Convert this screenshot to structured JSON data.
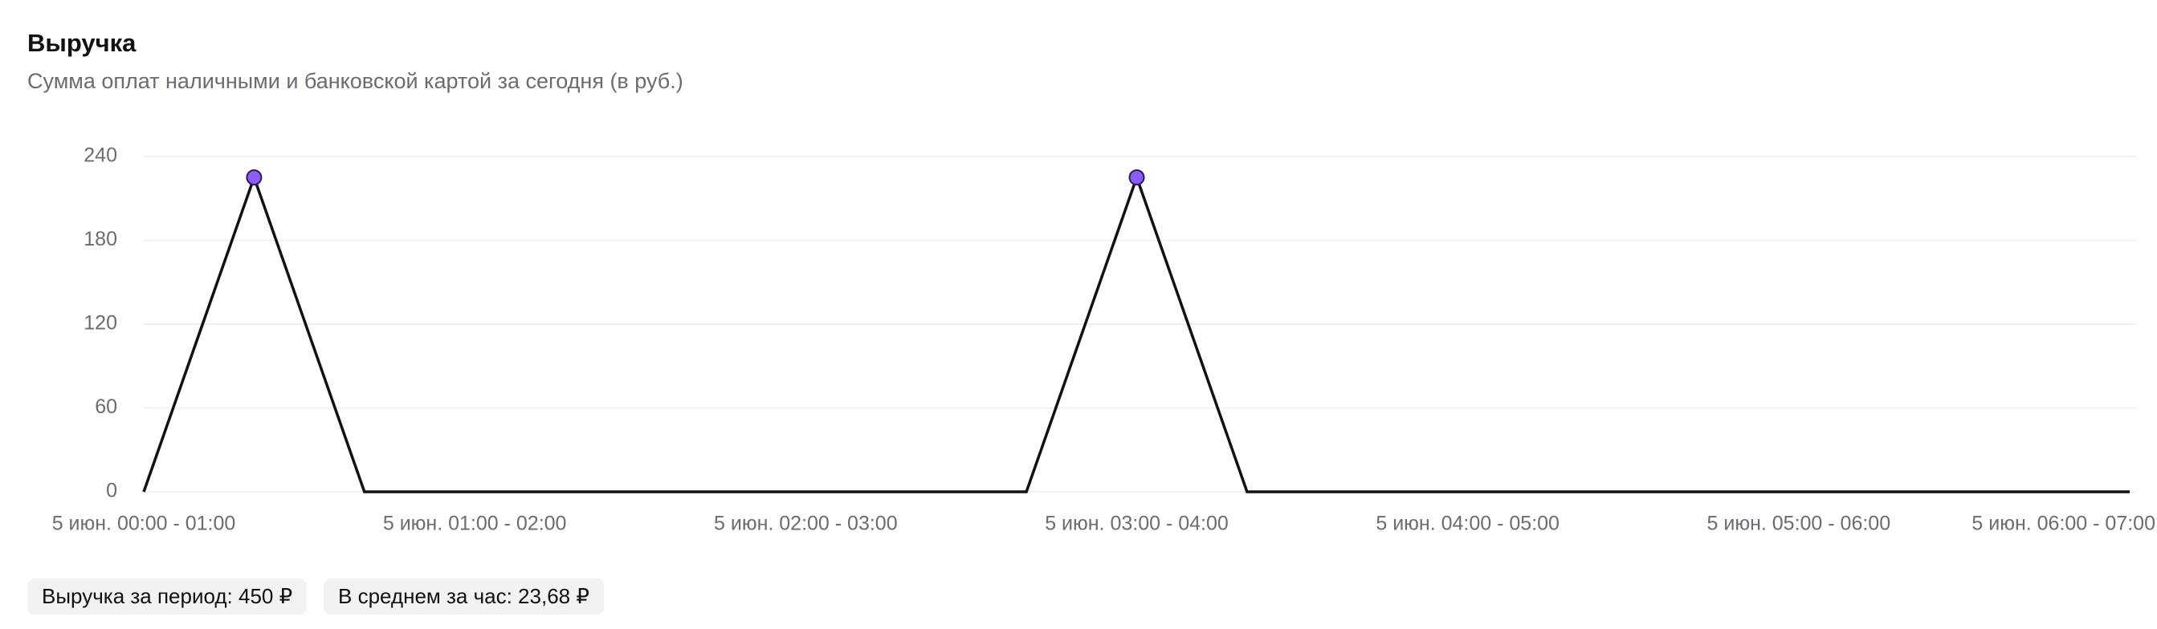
{
  "chart_data": {
    "type": "line",
    "title": "Выручка",
    "subtitle": "Сумма оплат наличными и банковской картой за сегодня (в руб.)",
    "categories": [
      "5 июн. 00:00 - 01:00",
      null,
      null,
      "5 июн. 01:00 - 02:00",
      null,
      null,
      "5 июн. 02:00 - 03:00",
      null,
      null,
      "5 июн. 03:00 - 04:00",
      null,
      null,
      "5 июн. 04:00 - 05:00",
      null,
      null,
      "5 июн. 05:00 - 06:00",
      null,
      null,
      "5 июн. 06:00 - 07:00"
    ],
    "values": [
      0,
      225,
      0,
      0,
      0,
      0,
      0,
      0,
      0,
      225,
      0,
      0,
      0,
      0,
      0,
      0,
      0,
      0,
      0
    ],
    "color": "#111111",
    "marker_color": "#8b5cf6",
    "ylim": [
      0,
      240
    ],
    "yticks": [
      0,
      60,
      120,
      180,
      240
    ],
    "grid": true
  },
  "summary": [
    "Выручка за период: 450 ₽",
    "В среднем за час: 23,68 ₽"
  ]
}
